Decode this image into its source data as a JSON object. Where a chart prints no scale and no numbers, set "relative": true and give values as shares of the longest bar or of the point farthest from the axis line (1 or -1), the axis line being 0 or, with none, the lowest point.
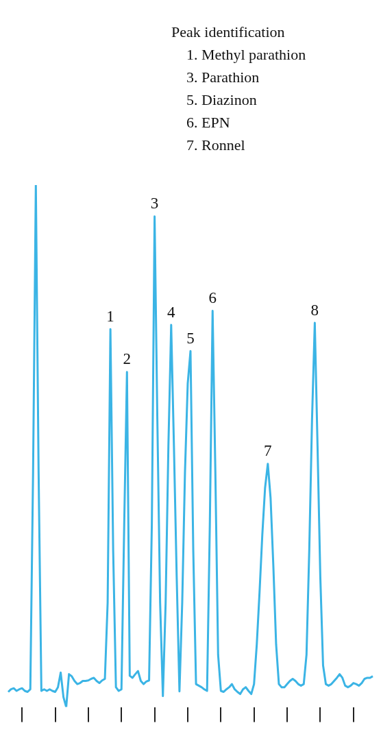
{
  "chart_data": {
    "type": "line",
    "relative": true,
    "color": "#3bb4e5",
    "marker": "none",
    "line_style": "solid",
    "grid": false,
    "legend": false,
    "categories": [
      null,
      null,
      null,
      null,
      null,
      null,
      null,
      null,
      null,
      null,
      null,
      null,
      null,
      null,
      null,
      null,
      null,
      null,
      null,
      null,
      null,
      null,
      null,
      null,
      null,
      null,
      null,
      null,
      null,
      null,
      null,
      null,
      null,
      null,
      null,
      null,
      null,
      null,
      null,
      null,
      null,
      null,
      null,
      null,
      null,
      null,
      null,
      null,
      null,
      null,
      null,
      null,
      null,
      null,
      null,
      null,
      null,
      null,
      null,
      null,
      null,
      null,
      null,
      null,
      null,
      null,
      null,
      null,
      null,
      null,
      null,
      null,
      null,
      null,
      null,
      null,
      null,
      null,
      null,
      null,
      null,
      null,
      null,
      null,
      null,
      null,
      null,
      null,
      null,
      null,
      null,
      null,
      null,
      null,
      null,
      null,
      null,
      null,
      null,
      null,
      null,
      null,
      null,
      null,
      null,
      null,
      null,
      null,
      null,
      null,
      null,
      null,
      null,
      null,
      null,
      null,
      null,
      null,
      null,
      null,
      null,
      null,
      null,
      null,
      null,
      null,
      null,
      null,
      null,
      null,
      null,
      null,
      null
    ],
    "values": [
      0.029,
      0.034,
      0.036,
      0.031,
      0.034,
      0.036,
      0.031,
      0.029,
      0.034,
      0.45,
      1.0,
      0.45,
      0.031,
      0.034,
      0.031,
      0.034,
      0.031,
      0.029,
      0.038,
      0.066,
      0.019,
      0.0,
      0.063,
      0.059,
      0.05,
      0.044,
      0.046,
      0.05,
      0.05,
      0.051,
      0.054,
      0.056,
      0.05,
      0.046,
      0.051,
      0.054,
      0.2,
      0.724,
      0.3,
      0.038,
      0.031,
      0.034,
      0.35,
      0.642,
      0.06,
      0.056,
      0.063,
      0.069,
      0.05,
      0.044,
      0.049,
      0.051,
      0.35,
      0.94,
      0.55,
      0.2,
      0.021,
      0.2,
      0.5,
      0.732,
      0.5,
      0.25,
      0.03,
      0.2,
      0.45,
      0.62,
      0.682,
      0.3,
      0.044,
      0.041,
      0.038,
      0.034,
      0.031,
      0.35,
      0.759,
      0.45,
      0.1,
      0.031,
      0.029,
      0.034,
      0.038,
      0.044,
      0.034,
      0.029,
      0.025,
      0.034,
      0.038,
      0.031,
      0.025,
      0.044,
      0.12,
      0.22,
      0.33,
      0.42,
      0.466,
      0.4,
      0.27,
      0.12,
      0.044,
      0.038,
      0.038,
      0.044,
      0.05,
      0.054,
      0.05,
      0.044,
      0.041,
      0.044,
      0.1,
      0.3,
      0.55,
      0.736,
      0.5,
      0.25,
      0.08,
      0.044,
      0.041,
      0.044,
      0.05,
      0.056,
      0.063,
      0.056,
      0.041,
      0.038,
      0.041,
      0.046,
      0.044,
      0.041,
      0.046,
      0.054,
      0.056,
      0.056,
      0.059
    ],
    "annotations": [
      "Peak identification",
      "1. Methyl parathion",
      "3. Parathion",
      "5. Diazinon",
      "6. EPN",
      "7. Ronnel",
      {
        "text": "1",
        "y": 0.724
      },
      {
        "text": "2",
        "y": 0.642
      },
      {
        "text": "3",
        "y": 0.94
      },
      {
        "text": "4",
        "y": 0.732
      },
      {
        "text": "5",
        "y": 0.682
      },
      {
        "text": "6",
        "y": 0.759
      },
      {
        "text": "7",
        "y": 0.466
      },
      {
        "text": "8",
        "y": 0.736
      }
    ]
  }
}
